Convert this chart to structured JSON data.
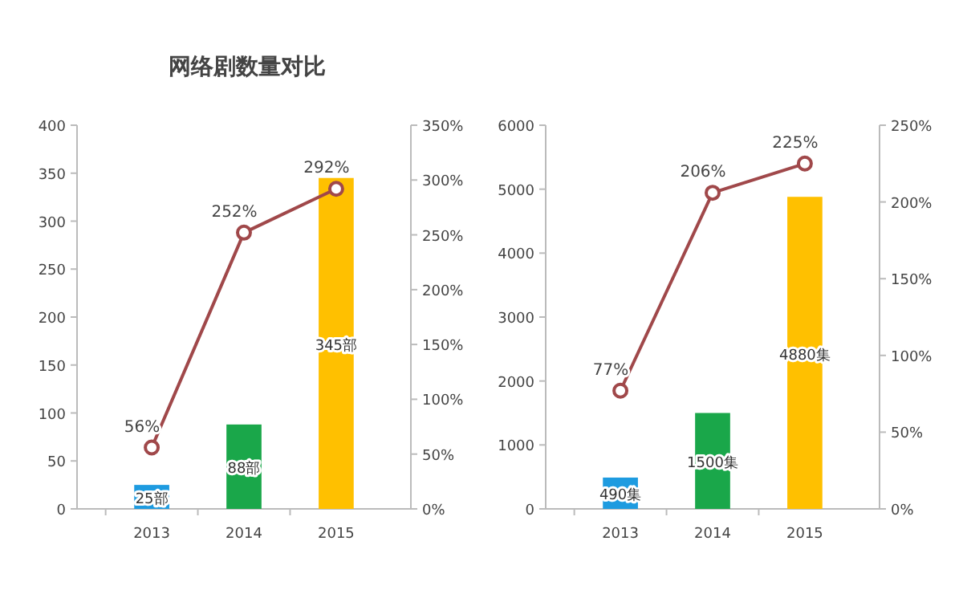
{
  "chart_data": [
    {
      "type": "bar",
      "title": "网络剧数量对比",
      "categories": [
        "2013",
        "2014",
        "2015"
      ],
      "ylim": [
        0,
        400
      ],
      "yticks": [
        0,
        50,
        100,
        150,
        200,
        250,
        300,
        350,
        400
      ],
      "y2lim": [
        0,
        350
      ],
      "y2ticks": [
        {
          "value": 0,
          "label": "0%"
        },
        {
          "value": 50,
          "label": "50%"
        },
        {
          "value": 100,
          "label": "100%"
        },
        {
          "value": 150,
          "label": "150%"
        },
        {
          "value": 200,
          "label": "200%"
        },
        {
          "value": 250,
          "label": "250%"
        },
        {
          "value": 300,
          "label": "300%"
        },
        {
          "value": 350,
          "label": "350%"
        }
      ],
      "series": [
        {
          "colors": [
            "#1e9be0",
            "#1aa74a",
            "#ffc000"
          ],
          "values": [
            25,
            88,
            345
          ],
          "value_labels": [
            "25部",
            "88部",
            "345部"
          ]
        },
        {
          "type": "line",
          "axis": "y2",
          "color": "#a0484a",
          "marker": "circle",
          "values": [
            56,
            252,
            292
          ],
          "value_labels": [
            "56%",
            "252%",
            "292%"
          ]
        }
      ]
    },
    {
      "type": "bar",
      "categories": [
        "2013",
        "2014",
        "2015"
      ],
      "ylim": [
        0,
        6000
      ],
      "yticks": [
        0,
        1000,
        2000,
        3000,
        4000,
        5000,
        6000
      ],
      "y2lim": [
        0,
        250
      ],
      "y2ticks": [
        {
          "value": 0,
          "label": "0%"
        },
        {
          "value": 50,
          "label": "50%"
        },
        {
          "value": 100,
          "label": "100%"
        },
        {
          "value": 150,
          "label": "150%"
        },
        {
          "value": 200,
          "label": "200%"
        },
        {
          "value": 250,
          "label": "250%"
        }
      ],
      "series": [
        {
          "colors": [
            "#1e9be0",
            "#1aa74a",
            "#ffc000"
          ],
          "values": [
            490,
            1500,
            4880
          ],
          "value_labels": [
            "490集",
            "1500集",
            "4880集"
          ]
        },
        {
          "type": "line",
          "axis": "y2",
          "color": "#a0484a",
          "marker": "circle",
          "values": [
            77,
            206,
            225
          ],
          "value_labels": [
            "77%",
            "206%",
            "225%"
          ]
        }
      ]
    }
  ]
}
